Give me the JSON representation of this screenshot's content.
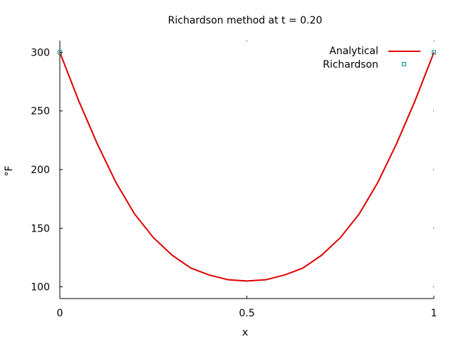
{
  "chart_data": {
    "type": "line",
    "title": "Richardson method at t = 0.20",
    "xlabel": "x",
    "ylabel": "°F",
    "xlim": [
      0,
      1
    ],
    "ylim": [
      90,
      310
    ],
    "xticks": [
      0,
      0.5,
      1
    ],
    "xtick_labels": [
      "0",
      "0.5",
      "1"
    ],
    "yticks": [
      100,
      150,
      200,
      250,
      300
    ],
    "ytick_labels": [
      "100",
      "150",
      "200",
      "250",
      "300"
    ],
    "grid": false,
    "legend_position": "top-right",
    "series": [
      {
        "name": "Analytical",
        "style": "line",
        "color": "#dd0000",
        "x": [
          0,
          0.05,
          0.1,
          0.15,
          0.2,
          0.25,
          0.3,
          0.35,
          0.4,
          0.45,
          0.5,
          0.55,
          0.6,
          0.65,
          0.7,
          0.75,
          0.8,
          0.85,
          0.9,
          0.95,
          1
        ],
        "y": [
          300,
          259,
          222,
          189,
          162,
          142,
          127,
          116,
          110,
          106,
          105,
          106,
          110,
          116,
          127,
          142,
          162,
          189,
          222,
          259,
          300
        ]
      },
      {
        "name": "Richardson",
        "style": "markers",
        "marker": "square",
        "color": "#008b8b",
        "x": [
          0,
          1
        ],
        "y": [
          300,
          300
        ]
      }
    ]
  }
}
